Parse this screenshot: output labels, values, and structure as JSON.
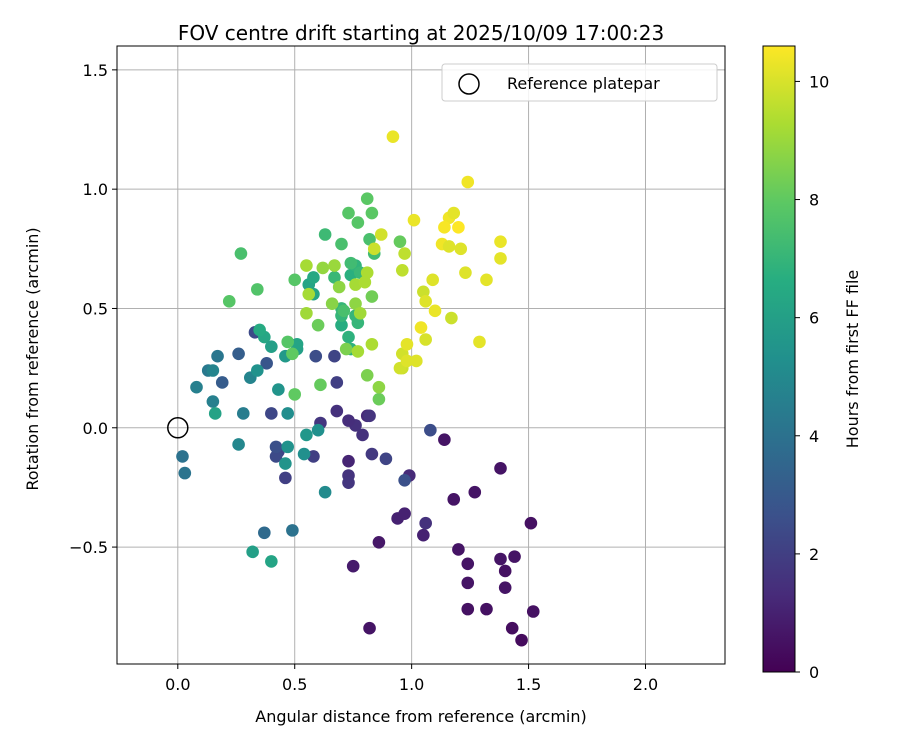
{
  "chart_data": {
    "type": "scatter",
    "title": "FOV centre drift starting at 2025/10/09 17:00:23",
    "xlabel": "Angular distance from reference (arcmin)",
    "ylabel": "Rotation from reference (arcmin)",
    "xlim": [
      -0.26,
      2.34
    ],
    "ylim": [
      -0.99,
      1.6
    ],
    "xticks": [
      0.0,
      0.5,
      1.0,
      1.5,
      2.0
    ],
    "xtick_labels": [
      "0.0",
      "0.5",
      "1.0",
      "1.5",
      "2.0"
    ],
    "yticks": [
      -0.5,
      0.0,
      0.5,
      1.0,
      1.5
    ],
    "ytick_labels": [
      "−0.5",
      "0.0",
      "0.5",
      "1.0",
      "1.5"
    ],
    "grid": true,
    "legend": {
      "label": "Reference platepar",
      "position": "top-right"
    },
    "reference_point": {
      "x": 0.0,
      "y": 0.0
    },
    "colorbar": {
      "label": "Hours from first FF file",
      "range": [
        0,
        10.6
      ],
      "ticks": [
        0,
        2,
        4,
        6,
        8,
        10
      ],
      "tick_labels": [
        "0",
        "2",
        "4",
        "6",
        "8",
        "10"
      ],
      "colormap": "viridis"
    },
    "points": [
      {
        "x": 1.43,
        "y": -0.84,
        "h": 0.4
      },
      {
        "x": 1.47,
        "y": -0.89,
        "h": 0.3
      },
      {
        "x": 1.52,
        "y": -0.77,
        "h": 0.5
      },
      {
        "x": 1.32,
        "y": -0.76,
        "h": 0.5
      },
      {
        "x": 1.24,
        "y": -0.76,
        "h": 0.5
      },
      {
        "x": 1.4,
        "y": -0.67,
        "h": 0.6
      },
      {
        "x": 1.24,
        "y": -0.65,
        "h": 0.6
      },
      {
        "x": 1.4,
        "y": -0.6,
        "h": 0.5
      },
      {
        "x": 1.38,
        "y": -0.55,
        "h": 0.6
      },
      {
        "x": 1.44,
        "y": -0.54,
        "h": 0.6
      },
      {
        "x": 1.24,
        "y": -0.57,
        "h": 0.6
      },
      {
        "x": 1.2,
        "y": -0.51,
        "h": 0.6
      },
      {
        "x": 1.51,
        "y": -0.4,
        "h": 0.5
      },
      {
        "x": 1.27,
        "y": -0.27,
        "h": 0.6
      },
      {
        "x": 1.18,
        "y": -0.3,
        "h": 0.6
      },
      {
        "x": 1.38,
        "y": -0.17,
        "h": 0.6
      },
      {
        "x": 1.14,
        "y": -0.05,
        "h": 0.6
      },
      {
        "x": 0.82,
        "y": -0.84,
        "h": 0.6
      },
      {
        "x": 0.86,
        "y": -0.48,
        "h": 0.7
      },
      {
        "x": 0.75,
        "y": -0.58,
        "h": 0.8
      },
      {
        "x": 0.94,
        "y": -0.38,
        "h": 1.0
      },
      {
        "x": 0.97,
        "y": -0.36,
        "h": 1.0
      },
      {
        "x": 1.05,
        "y": -0.45,
        "h": 1.0
      },
      {
        "x": 1.06,
        "y": -0.4,
        "h": 1.5
      },
      {
        "x": 0.99,
        "y": -0.2,
        "h": 1.3
      },
      {
        "x": 0.97,
        "y": -0.22,
        "h": 2.6
      },
      {
        "x": 1.08,
        "y": -0.01,
        "h": 2.5
      },
      {
        "x": 0.89,
        "y": -0.13,
        "h": 2.2
      },
      {
        "x": 0.83,
        "y": -0.11,
        "h": 1.8
      },
      {
        "x": 0.79,
        "y": -0.03,
        "h": 1.5
      },
      {
        "x": 0.76,
        "y": 0.01,
        "h": 1.5
      },
      {
        "x": 0.73,
        "y": -0.2,
        "h": 1.6
      },
      {
        "x": 0.73,
        "y": -0.23,
        "h": 1.7
      },
      {
        "x": 0.73,
        "y": -0.14,
        "h": 1.1
      },
      {
        "x": 0.73,
        "y": 0.03,
        "h": 1.4
      },
      {
        "x": 0.68,
        "y": 0.07,
        "h": 1.5
      },
      {
        "x": 0.81,
        "y": 0.05,
        "h": 1.3
      },
      {
        "x": 0.82,
        "y": 0.05,
        "h": 1.6
      },
      {
        "x": 0.61,
        "y": 0.02,
        "h": 1.7
      },
      {
        "x": 0.58,
        "y": -0.12,
        "h": 2.0
      },
      {
        "x": 0.68,
        "y": 0.19,
        "h": 2.0
      },
      {
        "x": 0.67,
        "y": 0.3,
        "h": 2.2
      },
      {
        "x": 0.59,
        "y": 0.3,
        "h": 2.5
      },
      {
        "x": 0.46,
        "y": -0.21,
        "h": 2.0
      },
      {
        "x": 0.43,
        "y": -0.1,
        "h": 2.2
      },
      {
        "x": 0.42,
        "y": -0.12,
        "h": 2.4
      },
      {
        "x": 0.42,
        "y": -0.08,
        "h": 2.6
      },
      {
        "x": 0.4,
        "y": 0.06,
        "h": 2.3
      },
      {
        "x": 0.33,
        "y": 0.4,
        "h": 2.4
      },
      {
        "x": 0.38,
        "y": 0.27,
        "h": 2.8
      },
      {
        "x": 0.19,
        "y": 0.19,
        "h": 3.1
      },
      {
        "x": 0.26,
        "y": 0.31,
        "h": 3.2
      },
      {
        "x": 0.37,
        "y": -0.44,
        "h": 3.7
      },
      {
        "x": 0.49,
        "y": -0.43,
        "h": 4.0
      },
      {
        "x": 0.03,
        "y": -0.19,
        "h": 4.1
      },
      {
        "x": 0.02,
        "y": -0.12,
        "h": 4.0
      },
      {
        "x": 0.17,
        "y": 0.3,
        "h": 4.2
      },
      {
        "x": 0.13,
        "y": 0.24,
        "h": 4.3
      },
      {
        "x": 0.28,
        "y": 0.06,
        "h": 4.5
      },
      {
        "x": 0.15,
        "y": 0.11,
        "h": 4.6
      },
      {
        "x": 0.08,
        "y": 0.17,
        "h": 4.6
      },
      {
        "x": 0.15,
        "y": 0.24,
        "h": 4.8
      },
      {
        "x": 0.26,
        "y": -0.07,
        "h": 4.9
      },
      {
        "x": 0.31,
        "y": 0.21,
        "h": 4.8
      },
      {
        "x": 0.47,
        "y": 0.06,
        "h": 5.2
      },
      {
        "x": 0.46,
        "y": -0.15,
        "h": 5.5
      },
      {
        "x": 0.47,
        "y": -0.08,
        "h": 5.4
      },
      {
        "x": 0.54,
        "y": -0.11,
        "h": 5.3
      },
      {
        "x": 0.63,
        "y": -0.27,
        "h": 5.1
      },
      {
        "x": 0.55,
        "y": -0.03,
        "h": 5.6
      },
      {
        "x": 0.6,
        "y": -0.01,
        "h": 5.3
      },
      {
        "x": 0.34,
        "y": 0.24,
        "h": 5.4
      },
      {
        "x": 0.46,
        "y": 0.3,
        "h": 5.7
      },
      {
        "x": 0.43,
        "y": 0.16,
        "h": 5.5
      },
      {
        "x": 0.32,
        "y": -0.52,
        "h": 6.0
      },
      {
        "x": 0.4,
        "y": -0.56,
        "h": 6.2
      },
      {
        "x": 0.16,
        "y": 0.06,
        "h": 6.1
      },
      {
        "x": 0.37,
        "y": 0.38,
        "h": 6.3
      },
      {
        "x": 0.35,
        "y": 0.41,
        "h": 6.5
      },
      {
        "x": 0.4,
        "y": 0.34,
        "h": 6.0
      },
      {
        "x": 0.51,
        "y": 0.33,
        "h": 6.0
      },
      {
        "x": 0.51,
        "y": 0.35,
        "h": 6.2
      },
      {
        "x": 0.56,
        "y": 0.6,
        "h": 6.2
      },
      {
        "x": 0.58,
        "y": 0.56,
        "h": 6.3
      },
      {
        "x": 0.58,
        "y": 0.63,
        "h": 6.4
      },
      {
        "x": 0.7,
        "y": 0.43,
        "h": 6.6
      },
      {
        "x": 0.74,
        "y": 0.33,
        "h": 6.8
      },
      {
        "x": 0.73,
        "y": 0.38,
        "h": 6.8
      },
      {
        "x": 0.77,
        "y": 0.44,
        "h": 7.0
      },
      {
        "x": 0.7,
        "y": 0.47,
        "h": 7.0
      },
      {
        "x": 0.76,
        "y": 0.47,
        "h": 7.0
      },
      {
        "x": 0.7,
        "y": 0.5,
        "h": 7.0
      },
      {
        "x": 0.74,
        "y": 0.64,
        "h": 6.7
      },
      {
        "x": 0.76,
        "y": 0.68,
        "h": 6.9
      },
      {
        "x": 0.78,
        "y": 0.65,
        "h": 7.1
      },
      {
        "x": 0.67,
        "y": 0.63,
        "h": 7.1
      },
      {
        "x": 0.71,
        "y": 0.49,
        "h": 7.5
      },
      {
        "x": 0.63,
        "y": 0.81,
        "h": 7.2
      },
      {
        "x": 0.74,
        "y": 0.69,
        "h": 7.3
      },
      {
        "x": 0.7,
        "y": 0.77,
        "h": 7.5
      },
      {
        "x": 0.82,
        "y": 0.79,
        "h": 7.5
      },
      {
        "x": 0.84,
        "y": 0.73,
        "h": 7.3
      },
      {
        "x": 0.77,
        "y": 0.86,
        "h": 7.8
      },
      {
        "x": 0.73,
        "y": 0.9,
        "h": 7.8
      },
      {
        "x": 0.81,
        "y": 0.96,
        "h": 7.9
      },
      {
        "x": 0.83,
        "y": 0.9,
        "h": 7.9
      },
      {
        "x": 0.95,
        "y": 0.78,
        "h": 8.1
      },
      {
        "x": 0.5,
        "y": 0.62,
        "h": 7.8
      },
      {
        "x": 0.47,
        "y": 0.36,
        "h": 7.8
      },
      {
        "x": 0.49,
        "y": 0.31,
        "h": 8.0
      },
      {
        "x": 0.34,
        "y": 0.58,
        "h": 7.7
      },
      {
        "x": 0.22,
        "y": 0.53,
        "h": 7.8
      },
      {
        "x": 0.27,
        "y": 0.73,
        "h": 7.5
      },
      {
        "x": 0.5,
        "y": 0.14,
        "h": 8.0
      },
      {
        "x": 0.61,
        "y": 0.18,
        "h": 8.1
      },
      {
        "x": 0.6,
        "y": 0.43,
        "h": 8.2
      },
      {
        "x": 0.83,
        "y": 0.55,
        "h": 8.3
      },
      {
        "x": 0.86,
        "y": 0.12,
        "h": 8.2
      },
      {
        "x": 0.81,
        "y": 0.22,
        "h": 8.5
      },
      {
        "x": 0.86,
        "y": 0.17,
        "h": 8.8
      },
      {
        "x": 0.72,
        "y": 0.33,
        "h": 8.5
      },
      {
        "x": 0.66,
        "y": 0.52,
        "h": 8.7
      },
      {
        "x": 0.69,
        "y": 0.59,
        "h": 8.8
      },
      {
        "x": 0.76,
        "y": 0.52,
        "h": 8.8
      },
      {
        "x": 0.62,
        "y": 0.67,
        "h": 8.9
      },
      {
        "x": 0.67,
        "y": 0.68,
        "h": 9.0
      },
      {
        "x": 0.55,
        "y": 0.68,
        "h": 9.2
      },
      {
        "x": 0.56,
        "y": 0.56,
        "h": 9.2
      },
      {
        "x": 0.55,
        "y": 0.48,
        "h": 9.1
      },
      {
        "x": 0.76,
        "y": 0.6,
        "h": 9.2
      },
      {
        "x": 0.78,
        "y": 0.48,
        "h": 9.1
      },
      {
        "x": 0.77,
        "y": 0.32,
        "h": 9.2
      },
      {
        "x": 0.83,
        "y": 0.35,
        "h": 9.3
      },
      {
        "x": 0.81,
        "y": 0.65,
        "h": 9.3
      },
      {
        "x": 0.8,
        "y": 0.61,
        "h": 9.3
      },
      {
        "x": 0.84,
        "y": 0.75,
        "h": 9.8
      },
      {
        "x": 0.87,
        "y": 0.81,
        "h": 9.9
      },
      {
        "x": 0.96,
        "y": 0.66,
        "h": 9.6
      },
      {
        "x": 0.97,
        "y": 0.73,
        "h": 9.6
      },
      {
        "x": 1.05,
        "y": 0.57,
        "h": 9.8
      },
      {
        "x": 1.06,
        "y": 0.53,
        "h": 10.1
      },
      {
        "x": 1.06,
        "y": 0.37,
        "h": 10.0
      },
      {
        "x": 0.96,
        "y": 0.31,
        "h": 9.9
      },
      {
        "x": 0.96,
        "y": 0.25,
        "h": 9.8
      },
      {
        "x": 0.95,
        "y": 0.25,
        "h": 9.9
      },
      {
        "x": 0.98,
        "y": 0.28,
        "h": 10.1
      },
      {
        "x": 0.98,
        "y": 0.35,
        "h": 10.2
      },
      {
        "x": 1.02,
        "y": 0.28,
        "h": 10.1
      },
      {
        "x": 1.04,
        "y": 0.42,
        "h": 10.4
      },
      {
        "x": 1.1,
        "y": 0.49,
        "h": 10.3
      },
      {
        "x": 1.09,
        "y": 0.62,
        "h": 10.1
      },
      {
        "x": 1.01,
        "y": 0.87,
        "h": 10.3
      },
      {
        "x": 1.13,
        "y": 0.77,
        "h": 10.4
      },
      {
        "x": 1.16,
        "y": 0.88,
        "h": 10.4
      },
      {
        "x": 1.18,
        "y": 0.9,
        "h": 10.2
      },
      {
        "x": 1.14,
        "y": 0.84,
        "h": 10.5
      },
      {
        "x": 1.2,
        "y": 0.84,
        "h": 10.6
      },
      {
        "x": 1.16,
        "y": 0.76,
        "h": 10.1
      },
      {
        "x": 1.21,
        "y": 0.75,
        "h": 10.1
      },
      {
        "x": 1.17,
        "y": 0.46,
        "h": 9.8
      },
      {
        "x": 1.23,
        "y": 0.65,
        "h": 10.1
      },
      {
        "x": 1.24,
        "y": 1.03,
        "h": 10.4
      },
      {
        "x": 1.32,
        "y": 0.62,
        "h": 10.2
      },
      {
        "x": 1.29,
        "y": 0.36,
        "h": 10.2
      },
      {
        "x": 1.38,
        "y": 0.71,
        "h": 10.2
      },
      {
        "x": 1.38,
        "y": 0.78,
        "h": 10.3
      },
      {
        "x": 0.92,
        "y": 1.22,
        "h": 10.3
      }
    ]
  }
}
